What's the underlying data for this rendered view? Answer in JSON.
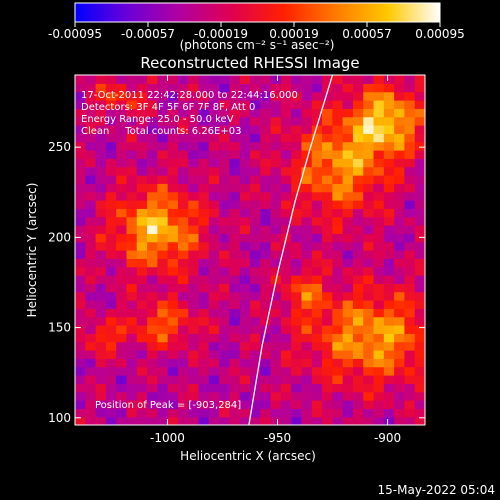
{
  "colorbar": {
    "ticks": [
      "-0.00095",
      "-0.00057",
      "-0.00019",
      "0.00019",
      "0.00057",
      "0.00095"
    ],
    "units": "(photons cm⁻² s⁻¹ asec⁻²)",
    "colors": [
      "#0000ff",
      "#6a00d8",
      "#b000a0",
      "#e00050",
      "#ff2000",
      "#ff7a00",
      "#ffc800",
      "#ffffff"
    ]
  },
  "title": "Reconstructed RHESSI Image",
  "info": {
    "time": "17-Oct-2011 22:42:28.000 to 22:44:16.000",
    "detectors": "Detectors: 3F 4F 5F 6F 7F 8F, Att 0",
    "energy": "Energy Range: 25.0 - 50.0 keV",
    "clean": "Clean     Total counts: 6.26E+03",
    "peak": "Position of Peak = [-903,284]"
  },
  "footer_date": "15-May-2022 05:04",
  "chart_data": {
    "type": "heatmap",
    "title": "Reconstructed RHESSI Image",
    "xlabel": "Heliocentric X (arcsec)",
    "ylabel": "Heliocentric Y (arcsec)",
    "xlim": [
      -1042,
      -883
    ],
    "ylim": [
      96,
      290
    ],
    "x_ticks": [
      {
        "v": -1000,
        "label": "-1000"
      },
      {
        "v": -950,
        "label": "-950"
      },
      {
        "v": -900,
        "label": "-900"
      }
    ],
    "y_ticks": [
      {
        "v": 100,
        "label": "100"
      },
      {
        "v": 150,
        "label": "150"
      },
      {
        "v": 200,
        "label": "200"
      },
      {
        "v": 250,
        "label": "250"
      }
    ],
    "value_range": [
      -0.00095,
      0.00095
    ],
    "peak_position": [
      -903,
      284
    ],
    "limb_curve": [
      [
        -963,
        96
      ],
      [
        -957,
        140
      ],
      [
        -950,
        180
      ],
      [
        -942,
        220
      ],
      [
        -935,
        250
      ],
      [
        -925,
        290
      ]
    ],
    "grid_dims": [
      34,
      42
    ],
    "sources": [
      {
        "x": -1005,
        "y": 205,
        "sx": 14,
        "sy": 16,
        "amp": 0.00095
      },
      {
        "x": -922,
        "y": 240,
        "sx": 15,
        "sy": 20,
        "amp": 0.0008
      },
      {
        "x": -900,
        "y": 265,
        "sx": 11,
        "sy": 14,
        "amp": 0.00095
      },
      {
        "x": -907,
        "y": 145,
        "sx": 20,
        "sy": 18,
        "amp": 0.00085
      },
      {
        "x": -1030,
        "y": 145,
        "sx": 7,
        "sy": 6,
        "amp": 0.0005
      },
      {
        "x": -1002,
        "y": 152,
        "sx": 11,
        "sy": 9,
        "amp": 0.0006
      },
      {
        "x": -938,
        "y": 170,
        "sx": 7,
        "sy": 10,
        "amp": 0.0005
      },
      {
        "x": -1022,
        "y": 278,
        "sx": 9,
        "sy": 7,
        "amp": 0.00045
      }
    ]
  }
}
